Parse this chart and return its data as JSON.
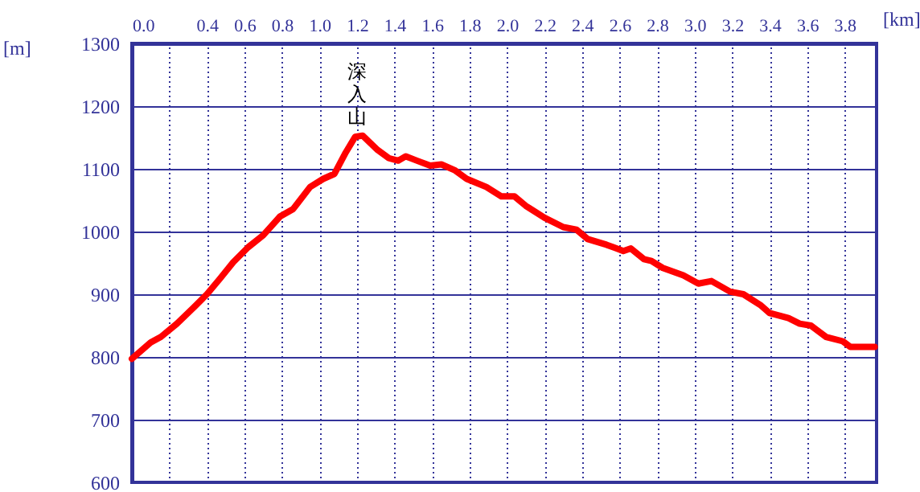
{
  "chart_data": {
    "type": "line",
    "xlabel": "[km]",
    "ylabel": "[m]",
    "x": [
      0,
      0.1,
      0.155,
      0.24,
      0.33,
      0.4,
      0.47,
      0.54,
      0.62,
      0.7,
      0.79,
      0.86,
      0.95,
      1.02,
      1.08,
      1.14,
      1.19,
      1.23,
      1.31,
      1.37,
      1.42,
      1.46,
      1.52,
      1.59,
      1.65,
      1.72,
      1.785,
      1.89,
      1.97,
      2.04,
      2.1,
      2.2,
      2.3,
      2.37,
      2.43,
      2.53,
      2.62,
      2.66,
      2.73,
      2.77,
      2.83,
      2.94,
      3.02,
      3.09,
      3.19,
      3.26,
      3.35,
      3.4,
      3.5,
      3.56,
      3.62,
      3.7,
      3.79,
      3.83,
      3.96
    ],
    "series": [
      {
        "color": "#ff0000",
        "values": [
          797,
          823,
          832,
          853,
          879,
          900,
          925,
          951,
          975,
          994,
          1024,
          1036,
          1071,
          1084,
          1092,
          1126,
          1151,
          1153,
          1130,
          1117,
          1113,
          1120,
          1113,
          1105,
          1107,
          1098,
          1084,
          1071,
          1056,
          1056,
          1041,
          1022,
          1007,
          1003,
          988,
          979,
          969,
          973,
          956,
          953,
          942,
          930,
          917,
          921,
          904,
          900,
          883,
          870,
          862,
          853,
          850,
          832,
          825,
          816,
          816
        ]
      }
    ],
    "xlim": [
      0,
      3.97
    ],
    "ylim": [
      600,
      1300
    ],
    "xticks": [
      {
        "value": 0,
        "label": "0.0"
      },
      {
        "value": 0.2,
        "label": null
      },
      0.4,
      0.6,
      0.8,
      {
        "value": 1,
        "label": "1.0"
      },
      1.2,
      1.4,
      1.6,
      1.8,
      {
        "value": 2,
        "label": "2.0"
      },
      2.2,
      2.4,
      2.6,
      2.8,
      {
        "value": 3,
        "label": "3.0"
      },
      3.2,
      3.4,
      3.6,
      3.8
    ],
    "yticks": [
      600,
      700,
      800,
      900,
      1000,
      1100,
      1200,
      1300
    ],
    "grid": true,
    "marker": "none",
    "line_style": "solid",
    "annotations": [
      {
        "text": "深入山",
        "x": 1.2,
        "y": 1155
      }
    ]
  }
}
